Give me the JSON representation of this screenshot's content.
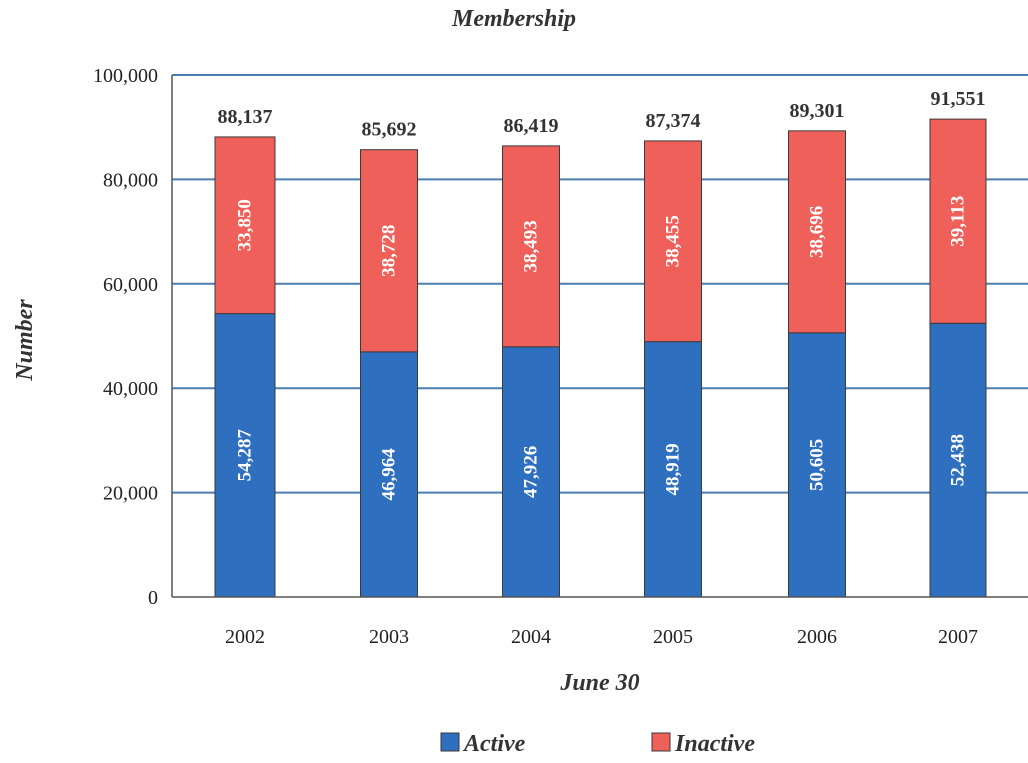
{
  "chart_data": {
    "type": "bar",
    "stacked": true,
    "title": "Membership",
    "xlabel": "June 30",
    "ylabel": "Number",
    "ylim": [
      0,
      100000
    ],
    "yticks": [
      "0",
      "20,000",
      "40,000",
      "60,000",
      "80,000",
      "100,000"
    ],
    "ytick_values": [
      0,
      20000,
      40000,
      60000,
      80000,
      100000
    ],
    "categories": [
      "2002",
      "2003",
      "2004",
      "2005",
      "2006",
      "2007"
    ],
    "series": [
      {
        "name": "Active",
        "color": "#2f6fc0",
        "values": [
          54287,
          46964,
          47926,
          48919,
          50605,
          52438
        ],
        "labels": [
          "54,287",
          "46,964",
          "47,926",
          "48,919",
          "50,605",
          "52,438"
        ]
      },
      {
        "name": "Inactive",
        "color": "#f0605a",
        "values": [
          33850,
          38728,
          38493,
          38455,
          38696,
          39113
        ],
        "labels": [
          "33,850",
          "38,728",
          "38,493",
          "38,455",
          "38,696",
          "39,113"
        ]
      }
    ],
    "totals": [
      88137,
      85692,
      86419,
      87374,
      89301,
      91551
    ],
    "total_labels": [
      "88,137",
      "85,692",
      "86,419",
      "87,374",
      "89,301",
      "91,551"
    ],
    "grid": true,
    "grid_color": "#4a7fb0",
    "legend_position": "bottom"
  }
}
